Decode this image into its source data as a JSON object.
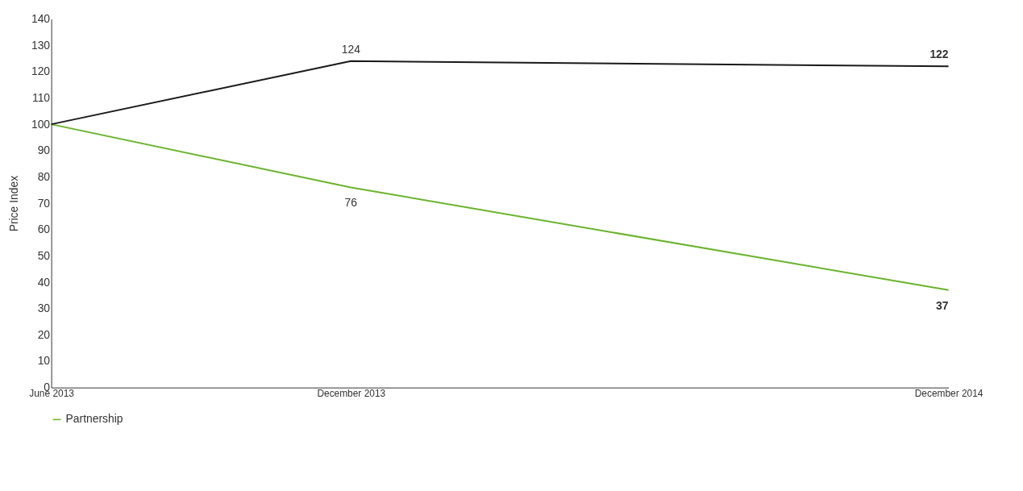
{
  "chart_data": {
    "type": "line",
    "ylabel": "Price Index",
    "x": [
      "2013-06",
      "2013-12",
      "2014-12"
    ],
    "xlim": [
      "2013-06",
      "2014-12"
    ],
    "xticks": [
      {
        "value": "2013-06",
        "label": "June 2013"
      },
      {
        "value": "2013-12",
        "label": "December 2013"
      },
      {
        "value": "2014-12",
        "label": "December 2014"
      }
    ],
    "ylim": [
      0,
      140
    ],
    "yticks": [
      0,
      10,
      20,
      30,
      40,
      50,
      60,
      70,
      80,
      90,
      100,
      110,
      120,
      130,
      140
    ],
    "series": [
      {
        "name": "Partnership",
        "color": "#6ab42d",
        "values": [
          100,
          76,
          37
        ],
        "value_labels": [
          null,
          "76",
          "37"
        ]
      },
      {
        "color": "#1a1a1a",
        "values": [
          100,
          124,
          122
        ],
        "value_labels": [
          null,
          "124",
          "122"
        ]
      }
    ],
    "grid": false,
    "legend": "bottom left",
    "marker": "none",
    "line_style": "solid"
  }
}
